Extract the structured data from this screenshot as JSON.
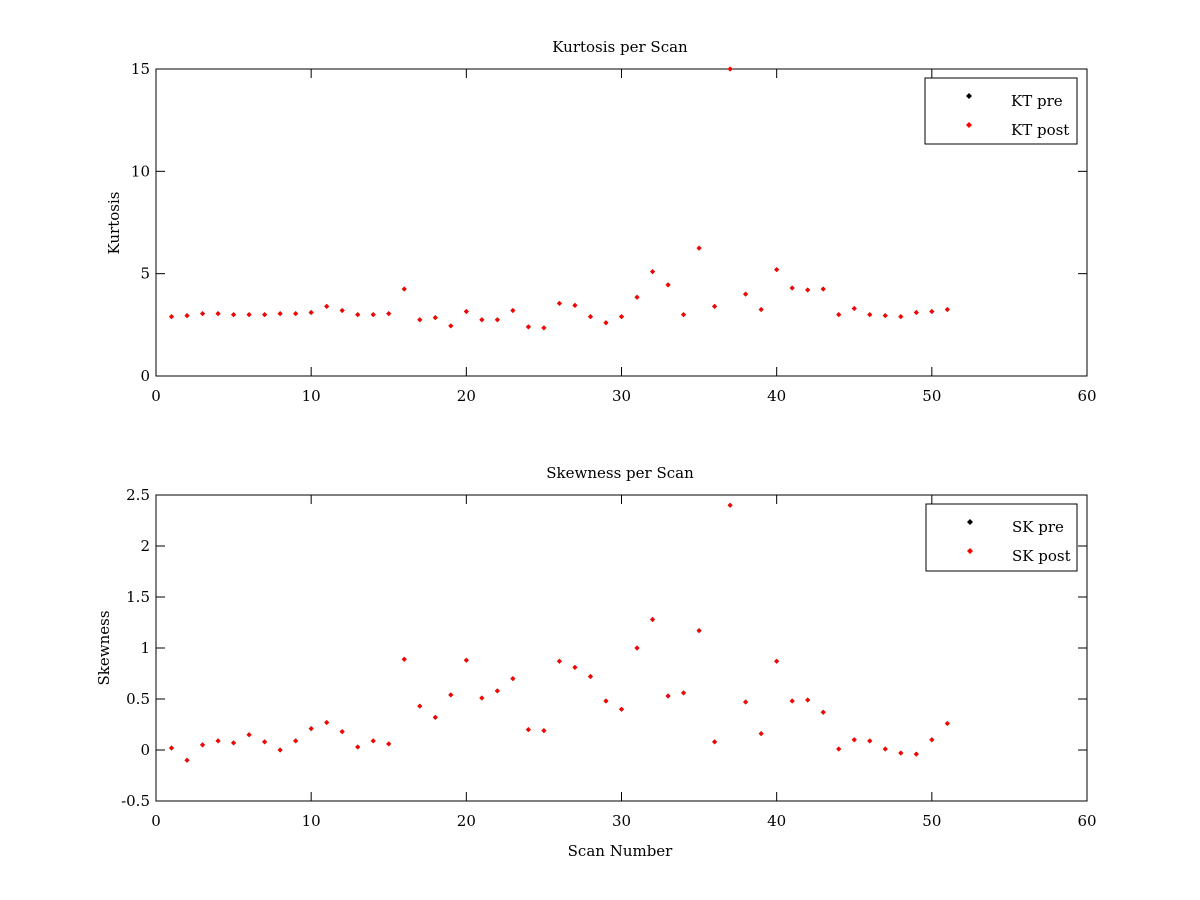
{
  "chart_data": [
    {
      "type": "scatter",
      "title": "Kurtosis per Scan",
      "xlabel": "",
      "ylabel": "Kurtosis",
      "xlim": [
        0,
        60
      ],
      "ylim": [
        0,
        15
      ],
      "xticks": [
        0,
        10,
        20,
        30,
        40,
        50,
        60
      ],
      "yticks": [
        0,
        5,
        10,
        15
      ],
      "xtick_labels": [
        "0",
        "10",
        "20",
        "30",
        "40",
        "50",
        "60"
      ],
      "ytick_labels": [
        "0",
        "5",
        "10",
        "15"
      ],
      "grid": false,
      "legend_position": "top-right",
      "x": [
        1,
        2,
        3,
        4,
        5,
        6,
        7,
        8,
        9,
        10,
        11,
        12,
        13,
        14,
        15,
        16,
        17,
        18,
        19,
        20,
        21,
        22,
        23,
        24,
        25,
        26,
        27,
        28,
        29,
        30,
        31,
        32,
        33,
        34,
        35,
        36,
        37,
        38,
        39,
        40,
        41,
        42,
        43,
        44,
        45,
        46,
        47,
        48,
        49,
        50,
        51
      ],
      "series": [
        {
          "name": "KT pre",
          "color": "#000000",
          "values": [
            2.9,
            2.95,
            3.05,
            3.05,
            3.0,
            3.0,
            3.0,
            3.05,
            3.05,
            3.1,
            3.4,
            3.2,
            3.0,
            3.0,
            3.05,
            4.25,
            2.75,
            2.85,
            2.45,
            3.15,
            2.75,
            2.75,
            3.2,
            2.4,
            2.35,
            3.55,
            3.45,
            2.9,
            2.6,
            2.9,
            3.85,
            5.1,
            4.45,
            3.0,
            6.25,
            3.4,
            15.0,
            4.0,
            3.25,
            5.2,
            4.3,
            4.2,
            4.25,
            3.0,
            3.3,
            3.0,
            2.95,
            2.9,
            3.1,
            3.15,
            3.25
          ]
        },
        {
          "name": "KT post",
          "color": "#ff0000",
          "values": [
            2.9,
            2.95,
            3.05,
            3.05,
            3.0,
            3.0,
            3.0,
            3.05,
            3.05,
            3.1,
            3.4,
            3.2,
            3.0,
            3.0,
            3.05,
            4.25,
            2.75,
            2.85,
            2.45,
            3.15,
            2.75,
            2.75,
            3.2,
            2.4,
            2.35,
            3.55,
            3.45,
            2.9,
            2.6,
            2.9,
            3.85,
            5.1,
            4.45,
            3.0,
            6.25,
            3.4,
            15.0,
            4.0,
            3.25,
            5.2,
            4.3,
            4.2,
            4.25,
            3.0,
            3.3,
            3.0,
            2.95,
            2.9,
            3.1,
            3.15,
            3.25
          ]
        }
      ]
    },
    {
      "type": "scatter",
      "title": "Skewness per Scan",
      "xlabel": "Scan Number",
      "ylabel": "Skewness",
      "xlim": [
        0,
        60
      ],
      "ylim": [
        -0.5,
        2.5
      ],
      "xticks": [
        0,
        10,
        20,
        30,
        40,
        50,
        60
      ],
      "yticks": [
        -0.5,
        0,
        0.5,
        1,
        1.5,
        2,
        2.5
      ],
      "xtick_labels": [
        "0",
        "10",
        "20",
        "30",
        "40",
        "50",
        "60"
      ],
      "ytick_labels": [
        "-0.5",
        "0",
        "0.5",
        "1",
        "1.5",
        "2",
        "2.5"
      ],
      "grid": false,
      "legend_position": "top-right",
      "x": [
        1,
        2,
        3,
        4,
        5,
        6,
        7,
        8,
        9,
        10,
        11,
        12,
        13,
        14,
        15,
        16,
        17,
        18,
        19,
        20,
        21,
        22,
        23,
        24,
        25,
        26,
        27,
        28,
        29,
        30,
        31,
        32,
        33,
        34,
        35,
        36,
        37,
        38,
        39,
        40,
        41,
        42,
        43,
        44,
        45,
        46,
        47,
        48,
        49,
        50,
        51
      ],
      "series": [
        {
          "name": "SK pre",
          "color": "#000000",
          "values": [
            0.02,
            -0.1,
            0.05,
            0.09,
            0.07,
            0.15,
            0.08,
            0.0,
            0.09,
            0.21,
            0.27,
            0.18,
            0.03,
            0.09,
            0.06,
            0.89,
            0.43,
            0.32,
            0.54,
            0.88,
            0.51,
            0.58,
            0.7,
            0.2,
            0.19,
            0.87,
            0.81,
            0.72,
            0.48,
            0.4,
            1.0,
            1.28,
            0.53,
            0.56,
            1.17,
            0.08,
            2.4,
            0.47,
            0.16,
            0.87,
            0.48,
            0.49,
            0.37,
            0.01,
            0.1,
            0.09,
            0.01,
            -0.03,
            -0.04,
            0.1,
            0.26
          ]
        },
        {
          "name": "SK post",
          "color": "#ff0000",
          "values": [
            0.02,
            -0.1,
            0.05,
            0.09,
            0.07,
            0.15,
            0.08,
            0.0,
            0.09,
            0.21,
            0.27,
            0.18,
            0.03,
            0.09,
            0.06,
            0.89,
            0.43,
            0.32,
            0.54,
            0.88,
            0.51,
            0.58,
            0.7,
            0.2,
            0.19,
            0.87,
            0.81,
            0.72,
            0.48,
            0.4,
            1.0,
            1.28,
            0.53,
            0.56,
            1.17,
            0.08,
            2.4,
            0.47,
            0.16,
            0.87,
            0.48,
            0.49,
            0.37,
            0.01,
            0.1,
            0.09,
            0.01,
            -0.03,
            -0.04,
            0.1,
            0.26
          ]
        }
      ]
    }
  ]
}
